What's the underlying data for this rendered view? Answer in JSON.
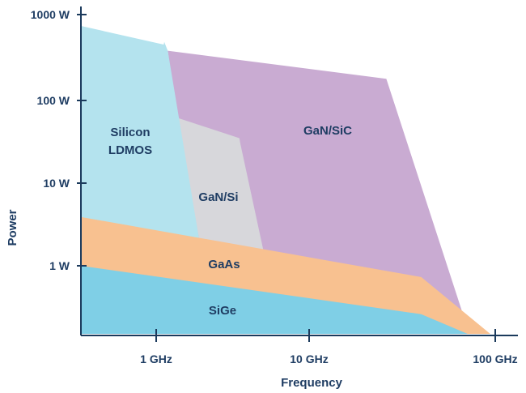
{
  "chart_data": {
    "type": "area",
    "title": "",
    "xlabel": "Frequency",
    "ylabel": "Power",
    "x_scale": "log",
    "y_scale": "log",
    "xlim": [
      0.32,
      130
    ],
    "ylim": [
      0.15,
      1000
    ],
    "x_ticks": [
      {
        "value": 1,
        "label": "1 GHz"
      },
      {
        "value": 10,
        "label": "10 GHz"
      },
      {
        "value": 100,
        "label": "100 GHz"
      }
    ],
    "y_ticks": [
      {
        "value": 1,
        "label": "1 W"
      },
      {
        "value": 10,
        "label": "10 W"
      },
      {
        "value": 100,
        "label": "100 W"
      },
      {
        "value": 1000,
        "label": "1000 W"
      }
    ],
    "grid": false,
    "axis_color": "#1b3a5c",
    "regions": [
      {
        "name": "GaN/SiC",
        "label_lines": [
          "GaN/SiC"
        ],
        "color": "#c9abd2",
        "points": [
          [
            1.19,
            400
          ],
          [
            26,
            183
          ],
          [
            66,
            0.29
          ],
          [
            66,
            0.15
          ],
          [
            1.37,
            0.15
          ],
          [
            1.37,
            62
          ]
        ]
      },
      {
        "name": "GaN/Si",
        "label_lines": [
          "GaN/Si"
        ],
        "color": "#d7d7db",
        "points": [
          [
            1.37,
            62
          ],
          [
            3.5,
            35
          ],
          [
            3.55,
            30
          ],
          [
            5.0,
            1.6
          ],
          [
            5.0,
            0.15
          ],
          [
            1.9,
            0.15
          ],
          [
            1.9,
            2.2
          ]
        ]
      },
      {
        "name": "Silicon LDMOS",
        "label_lines": [
          "Silicon",
          "LDMOS"
        ],
        "color": "#b4e3ee",
        "points": [
          [
            0.32,
            800
          ],
          [
            1.12,
            475
          ],
          [
            1.13,
            510
          ],
          [
            1.19,
            400
          ],
          [
            1.9,
            2.2
          ],
          [
            1.9,
            0.15
          ],
          [
            0.32,
            0.15
          ]
        ]
      },
      {
        "name": "GaAs",
        "label_lines": [
          "GaAs"
        ],
        "color": "#f8c190",
        "points": [
          [
            0.32,
            3.9
          ],
          [
            40,
            0.73
          ],
          [
            94,
            0.15
          ],
          [
            0.32,
            0.15
          ]
        ]
      },
      {
        "name": "SiGe",
        "label_lines": [
          "SiGe"
        ],
        "color": "#7fcfe6",
        "points": [
          [
            0.32,
            1.0
          ],
          [
            40,
            0.26
          ],
          [
            71,
            0.15
          ],
          [
            0.32,
            0.15
          ]
        ]
      }
    ]
  }
}
